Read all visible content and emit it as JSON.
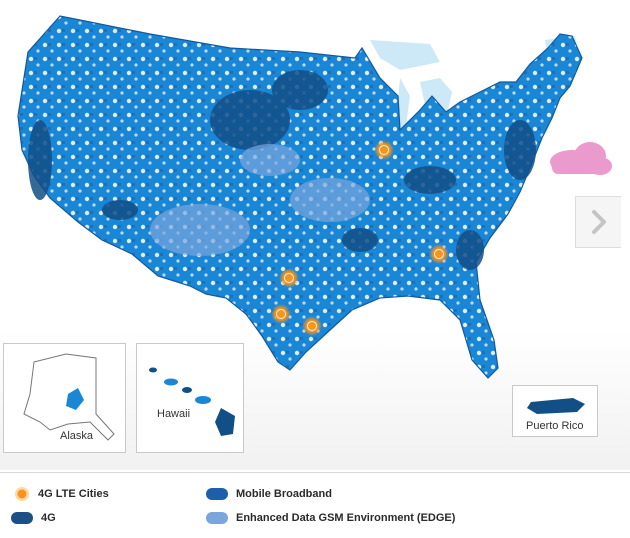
{
  "insets": {
    "alaska": {
      "label": "Alaska"
    },
    "hawaii": {
      "label": "Hawaii"
    },
    "puerto_rico": {
      "label": "Puerto Rico"
    }
  },
  "navigation": {
    "next_icon": "chevron-right-icon"
  },
  "legend": {
    "lte_cities": {
      "label": "4G LTE Cities",
      "color": "#f7941d"
    },
    "g4": {
      "label": "4G",
      "color": "#1c4f86"
    },
    "mobile_broadband": {
      "label": "Mobile Broadband",
      "color": "#1d5fa8"
    },
    "edge": {
      "label": "Enhanced Data GSM Environment (EDGE)",
      "color": "#7aa6dc"
    }
  },
  "colors": {
    "coverage": "#1a86d6",
    "coverage_dark": "#124f87",
    "lakes": "#cde8f6",
    "cloud": "#e889c6"
  }
}
